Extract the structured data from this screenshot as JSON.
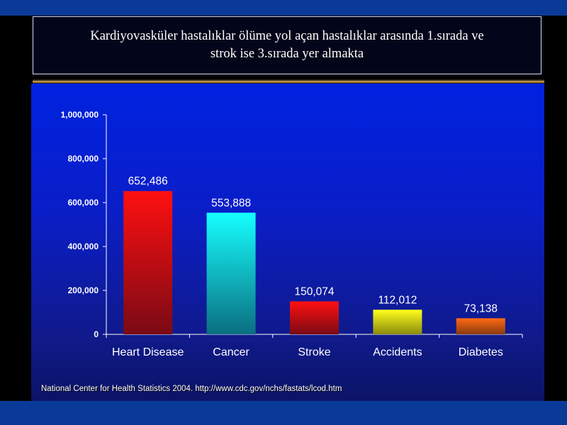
{
  "slide": {
    "title_line1": "Kardiyovasküler hastalıklar ölüme yol açan hastalıklar arasında 1.sırada ve",
    "title_line2": "strok ise 3.sırada yer almakta",
    "source": "National Center for Health Statistics 2004. http://www.cdc.gov/nchs/fastats/lcod.htm"
  },
  "chart_data": {
    "type": "bar",
    "categories": [
      "Heart Disease",
      "Cancer",
      "Stroke",
      "Accidents",
      "Diabetes"
    ],
    "values": [
      652486,
      553888,
      150074,
      112012,
      73138
    ],
    "data_labels": [
      "652,486",
      "553,888",
      "150,074",
      "112,012",
      "73,138"
    ],
    "yticks": [
      0,
      200000,
      400000,
      600000,
      800000,
      1000000
    ],
    "ytick_labels": [
      "0",
      "200,000",
      "400,000",
      "600,000",
      "800,000",
      "1,000,000"
    ],
    "ylim": [
      0,
      1000000
    ],
    "title": "",
    "xlabel": "",
    "ylabel": "",
    "grid": false,
    "legend": "none",
    "bar_colors": [
      [
        "#ff1010",
        "#7a0a14"
      ],
      [
        "#16ffff",
        "#0a6e80"
      ],
      [
        "#ff1010",
        "#7a0a14"
      ],
      [
        "#ffff1a",
        "#8a8a10"
      ],
      [
        "#ff6a12",
        "#8a3a10"
      ]
    ],
    "axis_color": "#ffffff"
  }
}
